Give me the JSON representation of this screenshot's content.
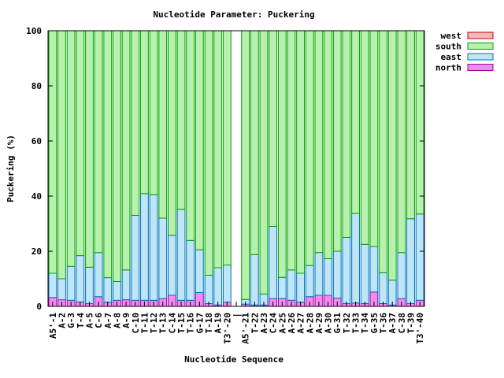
{
  "chart_data": {
    "type": "bar",
    "stacked": true,
    "title": "Nucleotide Parameter: Puckering",
    "xlabel": "Nucleotide Sequence",
    "ylabel": "Puckering (%)",
    "ylim": [
      0,
      100
    ],
    "yticks": [
      0,
      20,
      40,
      60,
      80,
      100
    ],
    "grid": false,
    "legend_position": "outside-right",
    "categories": [
      "A5'-1",
      "A-2",
      "G-3",
      "T-4",
      "A-5",
      "C-6",
      "A-7",
      "A-8",
      "A-9",
      "C-10",
      "T-11",
      "T-12",
      "T-13",
      "C-14",
      "T-15",
      "T-16",
      "G-17",
      "T-18",
      "A-19",
      "T3'-20",
      "|",
      "A5'-21",
      "T-22",
      "A-23",
      "C-24",
      "A-25",
      "A-26",
      "A-27",
      "A-28",
      "A-29",
      "A-30",
      "G-31",
      "T-32",
      "T-33",
      "T-34",
      "G-35",
      "T-36",
      "A-37",
      "C-38",
      "T-39",
      "T3'-40"
    ],
    "series": [
      {
        "name": "north",
        "color": "#f08cf0",
        "stroke": "#a000a0",
        "values": [
          3.2,
          2.4,
          2.2,
          1.6,
          1,
          3.5,
          1.5,
          2.2,
          2.4,
          2.2,
          2.2,
          2.2,
          2.8,
          4,
          2.2,
          2.2,
          5,
          1,
          0.5,
          1.5,
          null,
          0.8,
          0.5,
          0.5,
          2.8,
          2.8,
          2.2,
          1.5,
          3.5,
          4,
          4,
          3,
          1,
          1.2,
          1,
          5.2,
          1,
          0.5,
          2.8,
          1,
          2.2
        ]
      },
      {
        "name": "east",
        "color": "#bfe6f7",
        "stroke": "#0070c0",
        "values": [
          8.8,
          7.6,
          12.3,
          16.8,
          13.2,
          16,
          8.9,
          6.8,
          10.8,
          30.8,
          38.7,
          38.3,
          29.2,
          21.8,
          33,
          21.7,
          15.5,
          10.3,
          13.5,
          13.5,
          null,
          1.7,
          18.3,
          4,
          26.2,
          7.7,
          11,
          10.5,
          11.3,
          15.5,
          13.3,
          17,
          24,
          32.5,
          21.5,
          16.5,
          11.2,
          9,
          16.7,
          30.8,
          31.3
        ]
      },
      {
        "name": "south",
        "color": "#b8f0b0",
        "stroke": "#00a000",
        "values": [
          88,
          90,
          85.5,
          81.6,
          85.8,
          80.5,
          89.6,
          91,
          86.8,
          67,
          59.1,
          59.5,
          68,
          74.2,
          64.8,
          76.1,
          79.5,
          88.7,
          86,
          85,
          null,
          97.5,
          81.2,
          95.5,
          71,
          89.5,
          86.8,
          88,
          85.2,
          80.5,
          82.7,
          80,
          75,
          66.3,
          77.5,
          78.3,
          87.8,
          90.5,
          80.5,
          68.2,
          66.5
        ]
      },
      {
        "name": "west",
        "color": "#f5b8b8",
        "stroke": "#c00000",
        "values": [
          0,
          0,
          0,
          0,
          0,
          0,
          0,
          0,
          0,
          0,
          0,
          0,
          0,
          0,
          0,
          0,
          0,
          0,
          0,
          0,
          null,
          0,
          0,
          0,
          0,
          0,
          0,
          0,
          0,
          0,
          0,
          0,
          0,
          0,
          0,
          0,
          0,
          0,
          0,
          0,
          0
        ]
      }
    ]
  }
}
